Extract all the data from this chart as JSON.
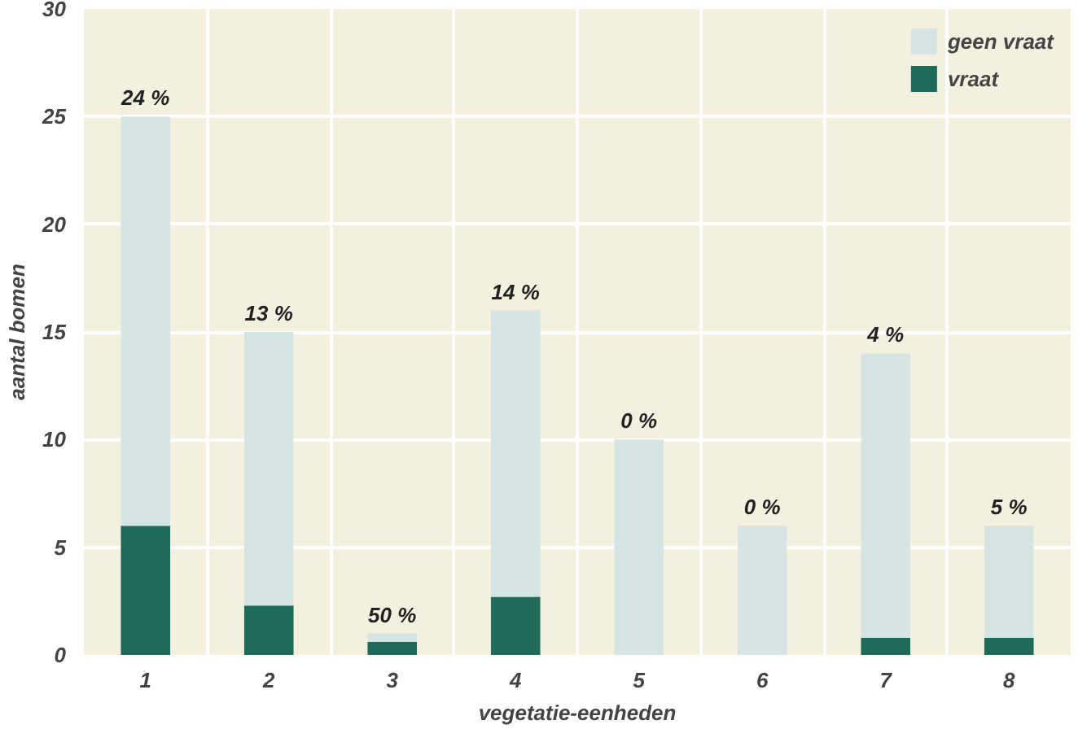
{
  "chart_data": {
    "type": "bar",
    "stacked": true,
    "xlabel": "vegetatie-eenheden",
    "ylabel": "aantal bomen",
    "categories": [
      "1",
      "2",
      "3",
      "4",
      "5",
      "6",
      "7",
      "8"
    ],
    "series": [
      {
        "name": "vraat",
        "color": "#1f6b5a",
        "values": [
          6,
          2.3,
          0.6,
          2.7,
          0,
          0,
          0.8,
          0.8
        ]
      },
      {
        "name": "geen vraat",
        "color": "#d6e4e3",
        "values": [
          19,
          12.7,
          0.4,
          13.3,
          10,
          6,
          13.2,
          5.2
        ]
      }
    ],
    "annotations": [
      {
        "text": "24 %",
        "x": "1",
        "y": 25
      },
      {
        "text": "13 %",
        "x": "2",
        "y": 15
      },
      {
        "text": "50 %",
        "x": "3",
        "y": 1
      },
      {
        "text": "14 %",
        "x": "4",
        "y": 16
      },
      {
        "text": "0 %",
        "x": "5",
        "y": 10
      },
      {
        "text": "0 %",
        "x": "6",
        "y": 6
      },
      {
        "text": "4 %",
        "x": "7",
        "y": 14
      },
      {
        "text": "5 %",
        "x": "8",
        "y": 6
      }
    ],
    "ylim": [
      0,
      30
    ],
    "yticks": [
      0,
      5,
      10,
      15,
      20,
      25,
      30
    ],
    "grid": true,
    "legend": "top right"
  }
}
